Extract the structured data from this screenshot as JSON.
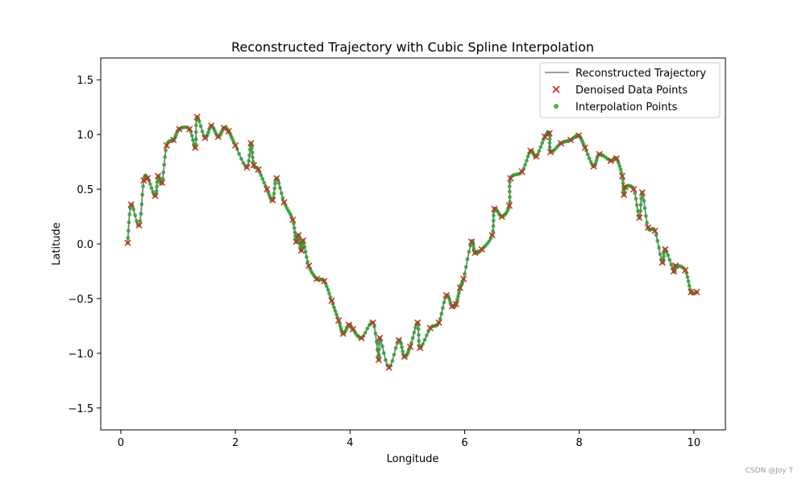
{
  "watermark": "CSDN @Joy T",
  "chart_data": {
    "type": "line",
    "title": "Reconstructed Trajectory with Cubic Spline Interpolation",
    "xlabel": "Longitude",
    "ylabel": "Latitude",
    "xlim": [
      -0.35,
      10.55
    ],
    "ylim": [
      -1.7,
      1.7
    ],
    "xticks": [
      0,
      2,
      4,
      6,
      8,
      10
    ],
    "yticks": [
      -1.5,
      -1.0,
      -0.5,
      0.0,
      0.5,
      1.0,
      1.5
    ],
    "xtick_labels": [
      "0",
      "2",
      "4",
      "6",
      "8",
      "10"
    ],
    "ytick_labels": [
      "−1.5",
      "−1.0",
      "−0.5",
      "0.0",
      "0.5",
      "1.0",
      "1.5"
    ],
    "grid": false,
    "legend_position": "top-right",
    "colors": {
      "trajectory": "#7f7f7f",
      "denoised": "#d62728",
      "interp": "#2ca02c"
    },
    "series": [
      {
        "name": "Reconstructed Trajectory",
        "kind": "line"
      },
      {
        "name": "Denoised Data Points",
        "kind": "scatter-x"
      },
      {
        "name": "Interpolation Points",
        "kind": "scatter-dot"
      }
    ],
    "points": [
      [
        0.12,
        0.01
      ],
      [
        0.18,
        0.36
      ],
      [
        0.32,
        0.17
      ],
      [
        0.4,
        0.58
      ],
      [
        0.47,
        0.6
      ],
      [
        0.6,
        0.44
      ],
      [
        0.65,
        0.62
      ],
      [
        0.72,
        0.56
      ],
      [
        0.8,
        0.9
      ],
      [
        0.92,
        0.95
      ],
      [
        1.02,
        1.05
      ],
      [
        1.2,
        1.05
      ],
      [
        1.3,
        0.88
      ],
      [
        1.33,
        1.16
      ],
      [
        1.47,
        0.97
      ],
      [
        1.58,
        1.08
      ],
      [
        1.7,
        0.98
      ],
      [
        1.8,
        1.06
      ],
      [
        1.88,
        1.03
      ],
      [
        2.0,
        0.9
      ],
      [
        2.2,
        0.7
      ],
      [
        2.27,
        0.92
      ],
      [
        2.32,
        0.72
      ],
      [
        2.4,
        0.68
      ],
      [
        2.55,
        0.5
      ],
      [
        2.65,
        0.4
      ],
      [
        2.72,
        0.6
      ],
      [
        2.85,
        0.38
      ],
      [
        3.0,
        0.22
      ],
      [
        3.06,
        0.02
      ],
      [
        3.1,
        0.08
      ],
      [
        3.15,
        -0.06
      ],
      [
        3.18,
        0.03
      ],
      [
        3.28,
        -0.2
      ],
      [
        3.42,
        -0.32
      ],
      [
        3.55,
        -0.34
      ],
      [
        3.68,
        -0.52
      ],
      [
        3.8,
        -0.7
      ],
      [
        3.88,
        -0.82
      ],
      [
        3.98,
        -0.74
      ],
      [
        4.05,
        -0.78
      ],
      [
        4.2,
        -0.86
      ],
      [
        4.4,
        -0.72
      ],
      [
        4.5,
        -1.06
      ],
      [
        4.52,
        -0.86
      ],
      [
        4.68,
        -1.13
      ],
      [
        4.85,
        -0.88
      ],
      [
        4.95,
        -1.03
      ],
      [
        5.05,
        -0.94
      ],
      [
        5.18,
        -0.72
      ],
      [
        5.22,
        -0.95
      ],
      [
        5.4,
        -0.77
      ],
      [
        5.55,
        -0.72
      ],
      [
        5.68,
        -0.47
      ],
      [
        5.78,
        -0.57
      ],
      [
        5.85,
        -0.55
      ],
      [
        5.92,
        -0.4
      ],
      [
        5.98,
        -0.32
      ],
      [
        6.12,
        0.02
      ],
      [
        6.18,
        -0.08
      ],
      [
        6.3,
        -0.05
      ],
      [
        6.48,
        0.08
      ],
      [
        6.52,
        0.32
      ],
      [
        6.65,
        0.25
      ],
      [
        6.78,
        0.35
      ],
      [
        6.8,
        0.6
      ],
      [
        7.0,
        0.66
      ],
      [
        7.15,
        0.85
      ],
      [
        7.25,
        0.8
      ],
      [
        7.4,
        0.98
      ],
      [
        7.48,
        1.01
      ],
      [
        7.5,
        0.84
      ],
      [
        7.68,
        0.92
      ],
      [
        7.85,
        0.95
      ],
      [
        7.99,
        0.99
      ],
      [
        8.1,
        0.88
      ],
      [
        8.25,
        0.71
      ],
      [
        8.35,
        0.82
      ],
      [
        8.55,
        0.76
      ],
      [
        8.65,
        0.78
      ],
      [
        8.75,
        0.62
      ],
      [
        8.78,
        0.45
      ],
      [
        8.8,
        0.52
      ],
      [
        8.95,
        0.5
      ],
      [
        9.05,
        0.24
      ],
      [
        9.1,
        0.47
      ],
      [
        9.2,
        0.15
      ],
      [
        9.32,
        0.12
      ],
      [
        9.45,
        -0.17
      ],
      [
        9.5,
        -0.05
      ],
      [
        9.65,
        -0.25
      ],
      [
        9.68,
        -0.2
      ],
      [
        9.85,
        -0.24
      ],
      [
        9.95,
        -0.44
      ],
      [
        10.05,
        -0.44
      ]
    ]
  }
}
